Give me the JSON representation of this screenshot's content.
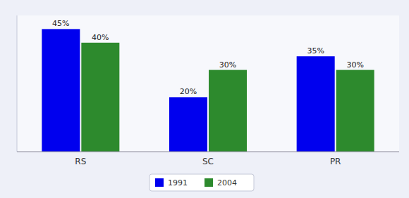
{
  "chart_data": {
    "type": "bar",
    "categories": [
      "RS",
      "SC",
      "PR"
    ],
    "series": [
      {
        "name": "1991",
        "color": "#0000ee",
        "values": [
          45,
          20,
          35
        ],
        "value_labels": [
          "45%",
          "20%",
          "35%"
        ]
      },
      {
        "name": "2004",
        "color": "#2d8a2d",
        "values": [
          40,
          30,
          30
        ],
        "value_labels": [
          "40%",
          "30%",
          "30%"
        ]
      }
    ],
    "ylim": [
      0,
      50
    ],
    "grid": false,
    "legend": "bottom",
    "data_labels": true,
    "tick_labels": "x"
  }
}
